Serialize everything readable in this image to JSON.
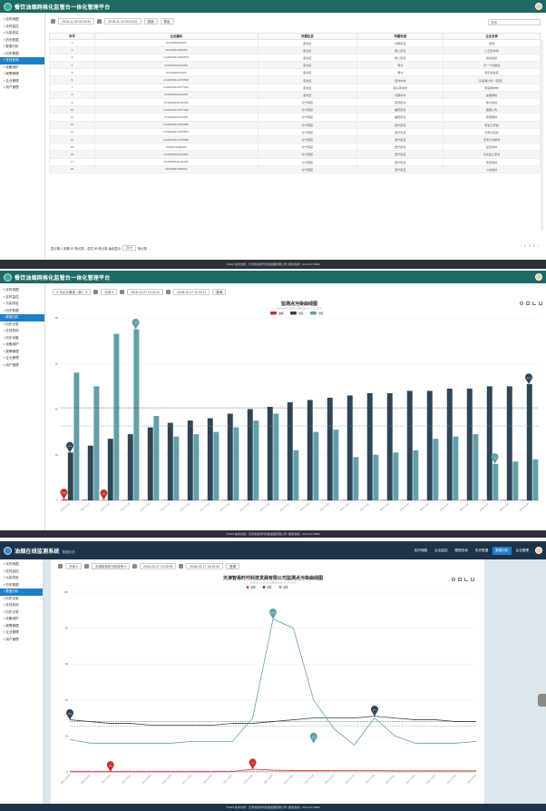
{
  "panel1": {
    "app_title": "餐饮油烟网格化监管台一体化管理平台",
    "menu": [
      "实时地图",
      "实时监控",
      "污染排名",
      "历史数据",
      "数据分析",
      "历史数据",
      "在线查询",
      "设备维护",
      "报警管理",
      "企业管理",
      "用户管理"
    ],
    "active_index": 6,
    "start_time": "2018-11-09 09:19:51",
    "end_time": "2018-11-10 09:19:51",
    "query_label": "查询",
    "export_label": "导出",
    "search_placeholder": "搜索",
    "columns": [
      "序号",
      "企业编码",
      "所属区县",
      "所属街道",
      "企业名称"
    ],
    "rows": [
      [
        "1",
        "0144000311233",
        "蓟北区",
        "光荣街道",
        "南南"
      ],
      [
        "2",
        "20105061000005",
        "蓟北区",
        "博二街道",
        "小五家坊坊"
      ],
      [
        "3",
        "0144000312070533",
        "蓟北区",
        "博二街道",
        "翁翁饭饭"
      ],
      [
        "4",
        "014400031123264",
        "蓟北区",
        "青北",
        "天一十坊发包"
      ],
      [
        "5",
        "0144000311323",
        "蓟北区",
        "青北",
        "老红饭饭店"
      ],
      [
        "6",
        "0144000312070509",
        "蓟北区",
        "西洋中坊",
        "百翁猪小吃（西直）"
      ],
      [
        "7",
        "0144000312077910",
        "蓟北区",
        "蓟东南中坊",
        "家庭烤肉坊"
      ],
      [
        "8",
        "014400031123265",
        "蓟北区",
        "光荣中坊",
        "饭堂烤坊"
      ],
      [
        "9",
        "0144000311232293",
        "北宁蓟区",
        "西河街道",
        "家乡饭坊"
      ],
      [
        "10",
        "0144000312077910",
        "北宁蓟区",
        "福安街道",
        "蘑蘑小吃"
      ],
      [
        "11",
        "014400031123486",
        "北宁蓟区",
        "福安街道",
        "老蘑蘑坊"
      ],
      [
        "12",
        "0144000312070596",
        "北宁蓟区",
        "西宁街道",
        "老饭土家饭"
      ],
      [
        "13",
        "0144000312070863",
        "北宁蓟区",
        "西宁街道",
        "德家大园坊"
      ],
      [
        "14",
        "0144000312078650",
        "北宁蓟区",
        "西宁街道",
        "玉河小食家坊"
      ],
      [
        "15",
        "2010071200009",
        "北宁蓟区",
        "西宁街道",
        "品老食坊"
      ],
      [
        "16",
        "0144000311323491",
        "北宁蓟区",
        "西宁街道",
        "大北饭土家坊"
      ],
      [
        "17",
        "0144000311232012",
        "北宁蓟区",
        "西宁街道",
        "老家饭坊"
      ],
      [
        "18",
        "20105061000029",
        "北宁蓟区",
        "西宁街道",
        "小食饭坊"
      ]
    ],
    "pagination_text": "显示第 1 到第 20 条记录，总共 89 条记录 每页显示",
    "page_size": "20",
    "page_size_suffix": "条记录",
    "pages": [
      "‹",
      "1",
      "2",
      "3",
      "›"
    ],
    "footer": "©2018 技术支持：天津德嘉时代科技发展有限公司 | 服务热线：022-23779890"
  },
  "panel2": {
    "app_title": "餐饮油烟网格化监管台一体化管理平台",
    "menu": [
      "实时地图",
      "实时监控",
      "污染排名",
      "历史数据",
      "数据分析",
      "历史记录",
      "在线查询",
      "历史设备",
      "设备维护",
      "报警管理",
      "企业管理",
      "用户管理"
    ],
    "active_index": 4,
    "location": "马记大果馆（新）",
    "interval": "分钟",
    "start_time": "2018-10-27 10:32:11",
    "end_time": "2018-10-27 11:32:11",
    "query_label": "查询",
    "footer": "©2018 技术支持：天津德嘉时代科技发展有限公司 | 服务热线：022-23779890"
  },
  "panel3": {
    "app_title": "油烟在线监测系统",
    "app_subtitle": "数据分析",
    "nav": [
      "实时地图",
      "企业监控",
      "跟踪查询",
      "历史数据",
      "数据分析",
      "企业管理"
    ],
    "nav_active": 4,
    "menu": [
      "实时地图",
      "实时监控",
      "污染排名",
      "历史数据",
      "数据分析",
      "历史记录",
      "在线查询",
      "历史记录",
      "设备维护",
      "报警管理",
      "企业管理",
      "用户管理"
    ],
    "active_index": 4,
    "interval": "分钟",
    "location": "天津智易时代科技有",
    "start_time": "2018-03-17 13:33:39",
    "end_time": "2018-03-17 14:33:39",
    "query_label": "查询",
    "footer": "©2018 技术支持：天津德嘉时代科技发展有限公司 | 服务热线：022-23779890"
  },
  "chart_data": [
    {
      "type": "bar",
      "title": "监测点污染曲线图",
      "subtitle": "2018-10-27 10:32:11至2018-10-27 11:32:11",
      "legend": [
        "油烟",
        "温度",
        "湿度"
      ],
      "colors": [
        "#c23531",
        "#2f4554",
        "#61a0a8"
      ],
      "ylim": [
        0,
        80
      ],
      "yticks": [
        0,
        20,
        40,
        60,
        80
      ],
      "categories": [
        "10-27 11:16",
        "10-27 11:17",
        "10-27 11:18",
        "10-27 11:19",
        "10-27 11:20",
        "10-27 11:21",
        "10-27 11:22",
        "10-27 11:23",
        "10-27 11:24",
        "10-27 11:25",
        "10-27 11:26",
        "10-27 11:27",
        "10-27 11:28",
        "10-27 11:29",
        "10-27 11:30",
        "10-27 11:31",
        "10-27 11:32",
        "10-27 11:33",
        "10-27 11:34",
        "10-27 11:35",
        "10-27 11:36",
        "10-27 11:37",
        "10-27 11:38",
        "10-27 11:39"
      ],
      "series": [
        {
          "name": "油烟",
          "values": [
            0.5,
            0.3,
            0.2,
            0.2,
            0.2,
            0.2,
            0.2,
            0.2,
            0.2,
            0.2,
            0.2,
            0.2,
            0.2,
            0.2,
            0.2,
            0.2,
            0.2,
            0.2,
            0.2,
            0.2,
            0.2,
            0.2,
            0.2,
            0.2
          ]
        },
        {
          "name": "温度",
          "values": [
            21,
            24,
            27,
            29,
            32,
            34,
            35,
            36,
            38,
            40,
            41,
            43,
            44,
            45,
            46,
            47,
            47,
            48,
            48,
            49,
            49,
            50,
            50,
            51
          ]
        },
        {
          "name": "湿度",
          "values": [
            56,
            50,
            73,
            75,
            37,
            28,
            29,
            30,
            32,
            35,
            38,
            22,
            30,
            31,
            19,
            20,
            21,
            22,
            27,
            28,
            29,
            16,
            17,
            18
          ]
        }
      ],
      "markpoints": [
        "0.49",
        "0.2",
        "75",
        "21.0",
        "16",
        "51.0"
      ]
    },
    {
      "type": "line",
      "title": "天津智易时代科技发展有限公司监测点污染曲线图",
      "subtitle": "2018-03-17 13:33:39至2018-03-17 14:33:39",
      "legend": [
        "油烟",
        "温度",
        "湿度"
      ],
      "colors": [
        "#c23531",
        "#2f4554",
        "#61a0a8"
      ],
      "ylim": [
        0,
        100
      ],
      "yticks": [
        0,
        20,
        40,
        60,
        80,
        100
      ],
      "categories": [
        "03-17 13:33",
        "03-17 13:36",
        "03-17 13:39",
        "03-17 13:42",
        "03-17 13:45",
        "03-17 13:48",
        "03-17 13:51",
        "03-17 13:54",
        "03-17 13:57",
        "03-17 14:00",
        "03-17 14:03",
        "03-17 14:06",
        "03-17 14:09",
        "03-17 14:12",
        "03-17 14:15",
        "03-17 14:18",
        "03-17 14:21",
        "03-17 14:24",
        "03-17 14:27",
        "03-17 14:30",
        "03-17 14:33"
      ],
      "series": [
        {
          "name": "油烟",
          "values": [
            0.1,
            0.1,
            0.1,
            0.1,
            0.1,
            0.1,
            0.1,
            0.1,
            0.2,
            1.5,
            1.0,
            0.8,
            0.8,
            0.7,
            0.7,
            0.7,
            0.6,
            0.6,
            0.6,
            0.6,
            0.6
          ]
        },
        {
          "name": "温度",
          "values": [
            29,
            28,
            27,
            27,
            26,
            26,
            26,
            26,
            27,
            27,
            28,
            29,
            30,
            30,
            30,
            31,
            30,
            29,
            29,
            28,
            28
          ]
        },
        {
          "name": "湿度",
          "values": [
            18,
            16,
            16,
            16,
            16,
            16,
            17,
            17,
            17,
            30,
            85,
            80,
            40,
            24,
            15,
            30,
            20,
            16,
            16,
            16,
            17
          ]
        }
      ],
      "markpoints": [
        "0.1",
        "1.5",
        "29.2",
        "31.7",
        "82.65",
        "15.6"
      ]
    }
  ]
}
